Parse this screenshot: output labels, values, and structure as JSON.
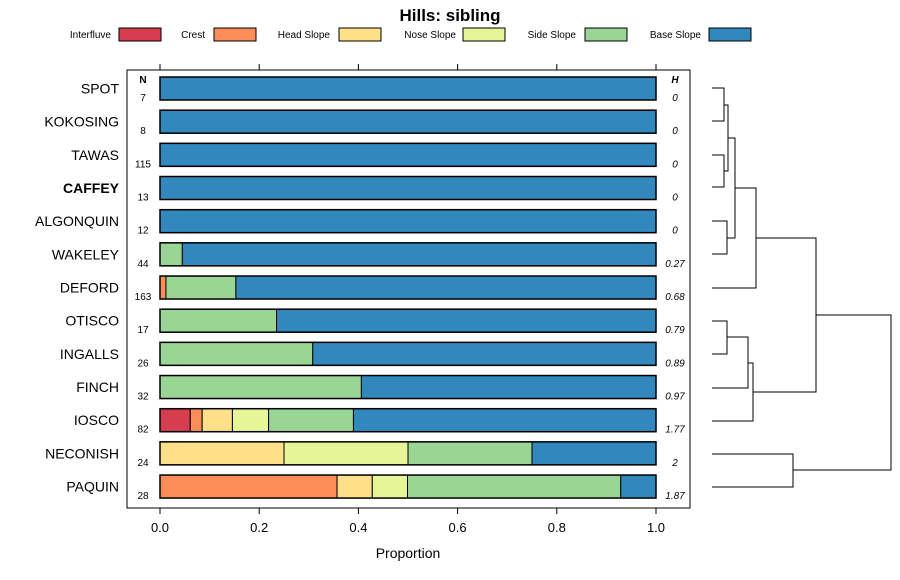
{
  "chart_data": {
    "type": "bar",
    "orientation": "horizontal-stacked",
    "title": "Hills: sibling",
    "xlabel": "Proportion",
    "ylabel": "",
    "xlim": [
      0,
      1
    ],
    "xticks": [
      "0.0",
      "0.2",
      "0.4",
      "0.6",
      "0.8",
      "1.0"
    ],
    "xtick_values": [
      0,
      0.2,
      0.4,
      0.6,
      0.8,
      1.0
    ],
    "n_header": "N",
    "h_header": "H",
    "legend": [
      {
        "name": "Interfluve",
        "color": "#D53E4F"
      },
      {
        "name": "Crest",
        "color": "#FC8D59"
      },
      {
        "name": "Head Slope",
        "color": "#FEE08B"
      },
      {
        "name": "Nose Slope",
        "color": "#E6F598"
      },
      {
        "name": "Side Slope",
        "color": "#99D594"
      },
      {
        "name": "Base Slope",
        "color": "#3288BD"
      }
    ],
    "categories": [
      "SPOT",
      "KOKOSING",
      "TAWAS",
      "CAFFEY",
      "ALGONQUIN",
      "WAKELEY",
      "DEFORD",
      "OTISCO",
      "INGALLS",
      "FINCH",
      "IOSCO",
      "NECONISH",
      "PAQUIN"
    ],
    "highlight": "CAFFEY",
    "n": [
      "7",
      "8",
      "115",
      "13",
      "12",
      "44",
      "163",
      "17",
      "26",
      "32",
      "82",
      "24",
      "28"
    ],
    "h": [
      "0",
      "0",
      "0",
      "0",
      "0",
      "0.27",
      "0.68",
      "0.79",
      "0.89",
      "0.97",
      "1.77",
      "2",
      "1.87"
    ],
    "series": [
      {
        "name": "Interfluve",
        "values": [
          0,
          0,
          0,
          0,
          0,
          0,
          0,
          0,
          0,
          0,
          0.061,
          0,
          0
        ]
      },
      {
        "name": "Crest",
        "values": [
          0,
          0,
          0,
          0,
          0,
          0,
          0.012,
          0,
          0,
          0,
          0.024,
          0,
          0.357
        ]
      },
      {
        "name": "Head Slope",
        "values": [
          0,
          0,
          0,
          0,
          0,
          0,
          0,
          0,
          0,
          0,
          0.061,
          0.25,
          0.071
        ]
      },
      {
        "name": "Nose Slope",
        "values": [
          0,
          0,
          0,
          0,
          0,
          0,
          0,
          0,
          0,
          0,
          0.073,
          0.25,
          0.071
        ]
      },
      {
        "name": "Side Slope",
        "values": [
          0,
          0,
          0,
          0,
          0,
          0.045,
          0.141,
          0.235,
          0.308,
          0.406,
          0.171,
          0.25,
          0.43
        ]
      },
      {
        "name": "Base Slope",
        "values": [
          1,
          1,
          1,
          1,
          1,
          0.955,
          0.847,
          0.765,
          0.692,
          0.594,
          0.61,
          0.25,
          0.071
        ]
      }
    ],
    "dendrogram": "hierarchical clustering tree of the 13 profiles"
  }
}
